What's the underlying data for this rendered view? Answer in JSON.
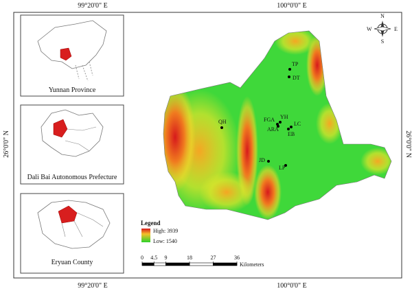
{
  "graticule": {
    "lon_left": "99°20'0\" E",
    "lon_right": "100°0'0\" E",
    "lat": "26°0'0\" N"
  },
  "insets": [
    {
      "label": "Yunnan Province"
    },
    {
      "label": "Dali Bai Autonomous Prefecture"
    },
    {
      "label": "Eryuan County"
    }
  ],
  "legend": {
    "title": "Legend",
    "high": "High: 3939",
    "low": "Low: 1540"
  },
  "scale": {
    "ticks": [
      0,
      4.5,
      9,
      18,
      27,
      36
    ],
    "unit": "Kilometers"
  },
  "sites": [
    {
      "label": "TP"
    },
    {
      "label": "DT"
    },
    {
      "label": "QH"
    },
    {
      "label": "FGA"
    },
    {
      "label": "YH"
    },
    {
      "label": "ARA"
    },
    {
      "label": "LC"
    },
    {
      "label": "EB"
    },
    {
      "label": "JD"
    },
    {
      "label": "LP"
    }
  ],
  "compass": {
    "n": "N",
    "s": "S",
    "e": "E",
    "w": "W"
  }
}
